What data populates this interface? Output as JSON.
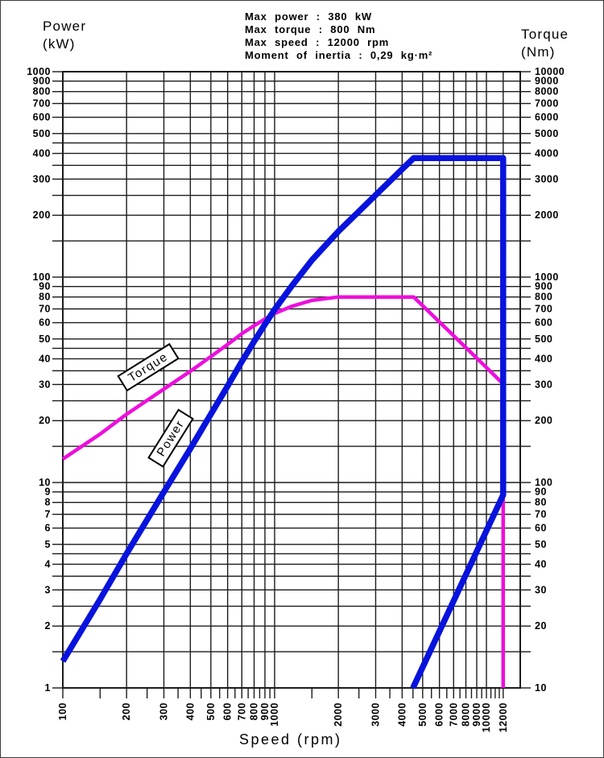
{
  "header": {
    "lines": [
      "Max power : 380 kW",
      "Max torque : 800 Nm",
      "Max speed : 12000 rpm",
      "Moment of inertia : 0,29 kg·m²"
    ]
  },
  "chart_data": {
    "type": "line",
    "scale": "log-log",
    "grid": {
      "y_mantissas": [
        1,
        1.5,
        2,
        2.5,
        3,
        3.5,
        4,
        4.5,
        5,
        6,
        7,
        8,
        9
      ],
      "x_gridlines_rpm": [
        100,
        200,
        300,
        400,
        500,
        600,
        700,
        800,
        900,
        1000,
        2000,
        3000,
        4000,
        5000,
        6000,
        7000,
        8000,
        9000,
        10000,
        12000
      ]
    },
    "x_axis": {
      "label": "Speed (rpm)",
      "scale": "log",
      "range_rpm": [
        100,
        12000
      ],
      "tick_labels": [
        "100",
        "200",
        "300",
        "400",
        "500",
        "600",
        "700",
        "800",
        "900",
        "1000",
        "2000",
        "3000",
        "4000",
        "5000",
        "6000",
        "7000",
        "8000",
        "9000",
        "10000",
        "12000"
      ]
    },
    "y_axis_left": {
      "label": "Power (kW)",
      "title_lines": [
        "Power",
        "(kW)"
      ],
      "scale": "log",
      "range": [
        1,
        1000
      ],
      "tick_labels": [
        "1000",
        "900",
        "800",
        "700",
        "600",
        "500",
        "400",
        "300",
        "200",
        "100",
        "90",
        "80",
        "70",
        "60",
        "50",
        "40",
        "30",
        "20",
        "10",
        "9",
        "8",
        "7",
        "6",
        "5",
        "4",
        "3",
        "2",
        "1"
      ]
    },
    "y_axis_right": {
      "label": "Torque (Nm)",
      "title_lines": [
        "Torque",
        "(Nm)"
      ],
      "scale": "log",
      "range": [
        10,
        10000
      ],
      "tick_labels": [
        "10000",
        "9000",
        "8000",
        "7000",
        "6000",
        "5000",
        "4000",
        "3000",
        "2000",
        "1000",
        "900",
        "800",
        "700",
        "600",
        "500",
        "400",
        "300",
        "200",
        "100",
        "90",
        "80",
        "70",
        "60",
        "50",
        "40",
        "30",
        "20",
        "10"
      ]
    },
    "series": [
      {
        "name": "Power",
        "unit": "kW",
        "axis": "left",
        "color": "#0713dd",
        "stroke_width": 7.5,
        "points_rpm_value": [
          [
            100,
            1.35
          ],
          [
            150,
            2.7
          ],
          [
            200,
            4.5
          ],
          [
            300,
            9
          ],
          [
            400,
            14.6
          ],
          [
            500,
            21.5
          ],
          [
            600,
            29.5
          ],
          [
            700,
            38.8
          ],
          [
            800,
            48.6
          ],
          [
            900,
            58.9
          ],
          [
            1000,
            69.5
          ],
          [
            1200,
            90
          ],
          [
            1500,
            121
          ],
          [
            2000,
            167
          ],
          [
            2500,
            209
          ],
          [
            3000,
            251
          ],
          [
            3500,
            293
          ],
          [
            4000,
            335
          ],
          [
            4536,
            380
          ],
          [
            12000,
            380
          ],
          [
            12000,
            8.7
          ],
          [
            4500,
            1
          ]
        ]
      },
      {
        "name": "Torque",
        "unit": "Nm",
        "axis": "right",
        "color": "#ee0edd",
        "stroke_width": 4.5,
        "points_rpm_value": [
          [
            100,
            130
          ],
          [
            150,
            172
          ],
          [
            200,
            215
          ],
          [
            300,
            285
          ],
          [
            400,
            348
          ],
          [
            500,
            410
          ],
          [
            600,
            470
          ],
          [
            700,
            530
          ],
          [
            800,
            580
          ],
          [
            900,
            625
          ],
          [
            1000,
            665
          ],
          [
            1200,
            720
          ],
          [
            1500,
            770
          ],
          [
            2000,
            800
          ],
          [
            3000,
            800
          ],
          [
            4536,
            800
          ],
          [
            6000,
            605
          ],
          [
            8000,
            454
          ],
          [
            10000,
            363
          ],
          [
            12000,
            302
          ],
          [
            12000,
            10
          ]
        ]
      }
    ],
    "annotations": {
      "max_power_kw": 380,
      "max_torque_nm": 800,
      "max_speed_rpm": 12000,
      "moment_of_inertia": "0,29 kg·m²"
    }
  }
}
